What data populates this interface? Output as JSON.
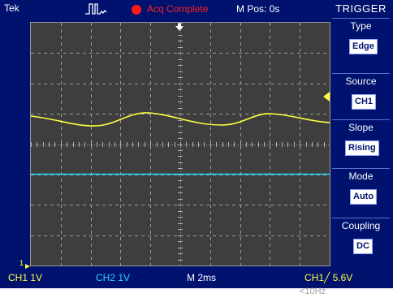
{
  "status": {
    "brand": "Tek",
    "acquisition": "Acq Complete",
    "position": "M Pos: 0s"
  },
  "menu": {
    "title": "TRIGGER",
    "sections": [
      {
        "label": "Type",
        "value": "Edge"
      },
      {
        "label": "Source",
        "value": "CH1"
      },
      {
        "label": "Slope",
        "value": "Rising"
      },
      {
        "label": "Mode",
        "value": "Auto"
      },
      {
        "label": "Coupling",
        "value": "DC"
      }
    ]
  },
  "readouts": {
    "ch1": "CH1  1V",
    "ch2": "CH2  1V",
    "timebase": "M 2ms",
    "trigger": "CH1╱ 5.6V",
    "frequency": "<10Hz"
  },
  "colors": {
    "bezel": "#00126e",
    "screen": "#3e3e3e",
    "ch1": "#ffff40",
    "ch2": "#29d7ff",
    "acq_indicator": "#ff1a1a"
  },
  "icons": {
    "trigger_glyph": "pulse-trigger-icon",
    "run_indicator": "run-dot-icon",
    "trigger_position": "trigger-position-marker-icon",
    "trigger_level": "trigger-level-marker-icon",
    "ch1_ground": "ch1-ground-marker-icon"
  }
}
